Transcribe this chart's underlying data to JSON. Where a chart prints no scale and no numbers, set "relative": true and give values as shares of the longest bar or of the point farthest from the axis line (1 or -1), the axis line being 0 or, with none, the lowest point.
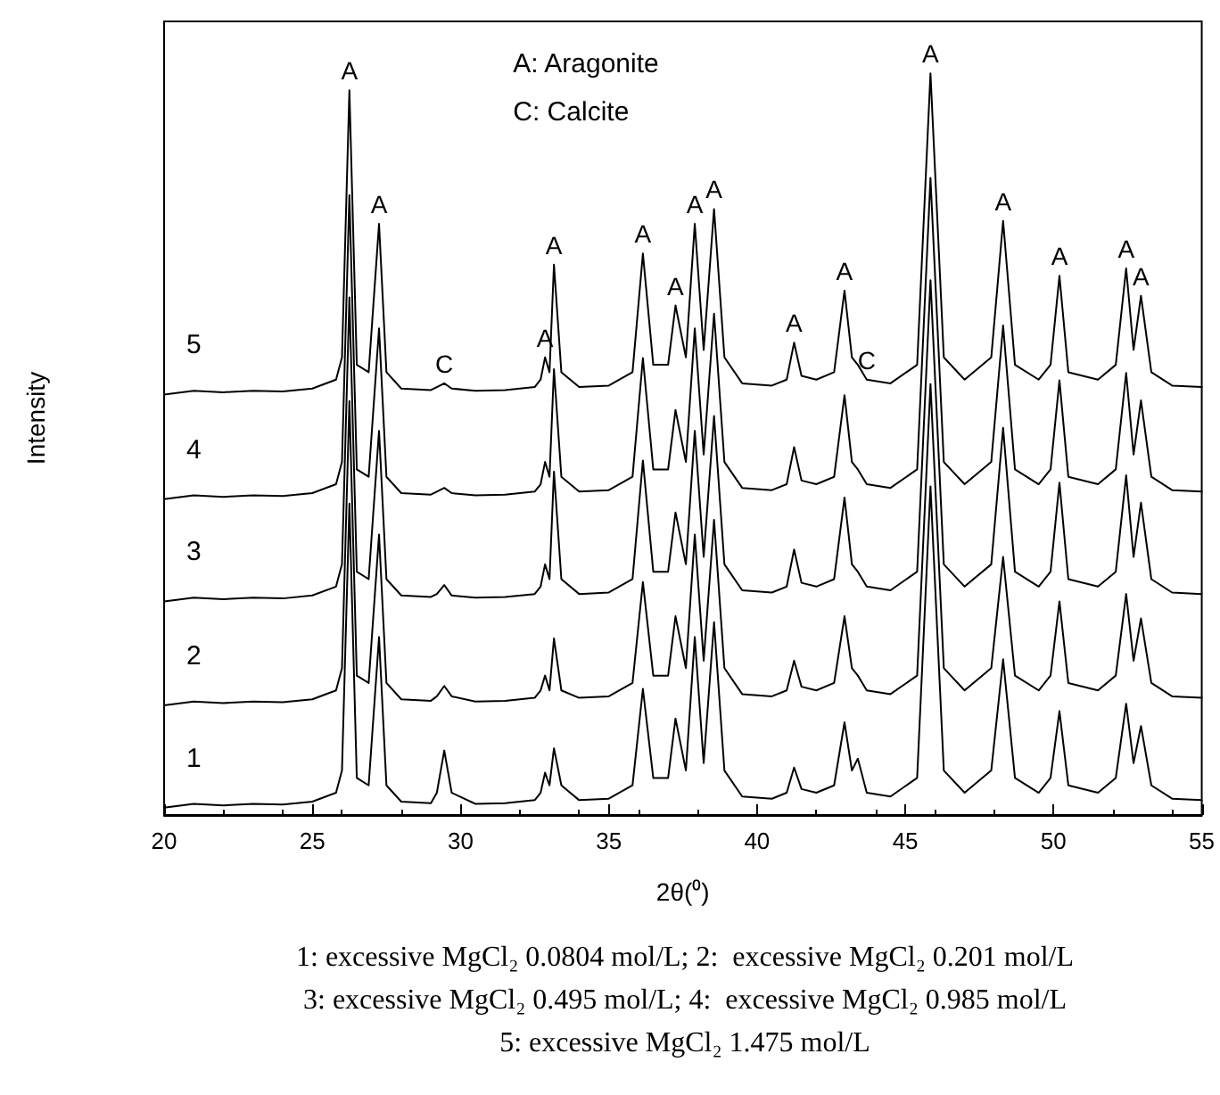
{
  "chart_data": {
    "type": "line",
    "relative": true,
    "xlabel": "2θ(⁰)",
    "ylabel": "Intensity",
    "xlim": [
      20,
      55
    ],
    "xticks": [
      20,
      25,
      30,
      35,
      40,
      45,
      50,
      55
    ],
    "grid": false,
    "legend": false,
    "marker": "none",
    "line_style": "solid",
    "x": [
      20,
      21,
      22,
      23,
      24,
      25,
      25.8,
      26.0,
      26.25,
      26.5,
      26.9,
      27.25,
      27.5,
      28,
      29,
      29.2,
      29.45,
      29.7,
      30.5,
      31.5,
      32.5,
      32.7,
      32.85,
      33.0,
      33.15,
      33.4,
      34,
      35,
      35.8,
      36.15,
      36.5,
      37.0,
      37.25,
      37.6,
      37.9,
      38.2,
      38.55,
      38.9,
      39.5,
      40.5,
      41.0,
      41.25,
      41.5,
      42.0,
      42.6,
      42.95,
      43.2,
      43.4,
      43.7,
      44.5,
      45.4,
      45.85,
      46.3,
      47.0,
      47.9,
      48.3,
      48.7,
      49.5,
      49.9,
      50.2,
      50.5,
      51.5,
      52.1,
      52.45,
      52.7,
      52.95,
      53.3,
      54,
      55
    ],
    "series": [
      {
        "name": "5",
        "color": "#000000",
        "values": [
          0.567,
          0.572,
          0.57,
          0.572,
          0.571,
          0.575,
          0.587,
          0.617,
          0.977,
          0.607,
          0.597,
          0.797,
          0.597,
          0.575,
          0.573,
          0.577,
          0.582,
          0.575,
          0.572,
          0.573,
          0.577,
          0.587,
          0.617,
          0.597,
          0.742,
          0.597,
          0.577,
          0.579,
          0.597,
          0.757,
          0.607,
          0.607,
          0.687,
          0.617,
          0.797,
          0.627,
          0.817,
          0.617,
          0.582,
          0.579,
          0.587,
          0.637,
          0.592,
          0.587,
          0.597,
          0.707,
          0.617,
          0.607,
          0.587,
          0.582,
          0.607,
          1.0,
          0.617,
          0.587,
          0.617,
          0.801,
          0.607,
          0.587,
          0.607,
          0.727,
          0.597,
          0.587,
          0.607,
          0.737,
          0.627,
          0.7,
          0.597,
          0.579,
          0.577
        ]
      },
      {
        "name": "4",
        "color": "#000000",
        "values": [
          0.426,
          0.431,
          0.429,
          0.431,
          0.43,
          0.434,
          0.446,
          0.476,
          0.836,
          0.466,
          0.456,
          0.656,
          0.456,
          0.434,
          0.432,
          0.436,
          0.441,
          0.434,
          0.431,
          0.432,
          0.436,
          0.446,
          0.476,
          0.456,
          0.601,
          0.456,
          0.436,
          0.438,
          0.456,
          0.616,
          0.466,
          0.466,
          0.546,
          0.476,
          0.656,
          0.486,
          0.676,
          0.476,
          0.441,
          0.438,
          0.446,
          0.496,
          0.451,
          0.446,
          0.456,
          0.566,
          0.476,
          0.466,
          0.446,
          0.441,
          0.466,
          0.859,
          0.476,
          0.446,
          0.476,
          0.66,
          0.466,
          0.446,
          0.466,
          0.586,
          0.456,
          0.446,
          0.466,
          0.596,
          0.486,
          0.559,
          0.456,
          0.438,
          0.436
        ]
      },
      {
        "name": "3",
        "color": "#000000",
        "values": [
          0.288,
          0.293,
          0.291,
          0.293,
          0.292,
          0.296,
          0.308,
          0.338,
          0.698,
          0.328,
          0.318,
          0.518,
          0.318,
          0.296,
          0.294,
          0.298,
          0.31,
          0.296,
          0.293,
          0.294,
          0.298,
          0.308,
          0.338,
          0.318,
          0.463,
          0.318,
          0.298,
          0.3,
          0.318,
          0.478,
          0.328,
          0.328,
          0.408,
          0.338,
          0.518,
          0.348,
          0.538,
          0.338,
          0.303,
          0.3,
          0.308,
          0.358,
          0.313,
          0.308,
          0.318,
          0.428,
          0.338,
          0.328,
          0.308,
          0.303,
          0.328,
          0.721,
          0.338,
          0.308,
          0.338,
          0.522,
          0.328,
          0.308,
          0.328,
          0.448,
          0.318,
          0.308,
          0.328,
          0.458,
          0.348,
          0.421,
          0.318,
          0.3,
          0.298
        ]
      },
      {
        "name": "2",
        "color": "#000000",
        "values": [
          0.148,
          0.153,
          0.151,
          0.153,
          0.152,
          0.156,
          0.168,
          0.198,
          0.558,
          0.188,
          0.178,
          0.378,
          0.178,
          0.156,
          0.154,
          0.16,
          0.174,
          0.16,
          0.153,
          0.154,
          0.158,
          0.168,
          0.188,
          0.168,
          0.238,
          0.168,
          0.158,
          0.16,
          0.178,
          0.314,
          0.188,
          0.188,
          0.268,
          0.198,
          0.378,
          0.208,
          0.398,
          0.198,
          0.163,
          0.16,
          0.168,
          0.208,
          0.173,
          0.168,
          0.178,
          0.268,
          0.198,
          0.188,
          0.168,
          0.163,
          0.188,
          0.581,
          0.198,
          0.168,
          0.198,
          0.348,
          0.188,
          0.168,
          0.188,
          0.288,
          0.178,
          0.168,
          0.188,
          0.298,
          0.208,
          0.265,
          0.178,
          0.16,
          0.158
        ]
      },
      {
        "name": "1",
        "color": "#000000",
        "values": [
          0.01,
          0.015,
          0.013,
          0.015,
          0.014,
          0.018,
          0.03,
          0.06,
          0.42,
          0.05,
          0.04,
          0.24,
          0.04,
          0.018,
          0.016,
          0.03,
          0.087,
          0.03,
          0.015,
          0.016,
          0.02,
          0.03,
          0.057,
          0.04,
          0.09,
          0.04,
          0.02,
          0.022,
          0.04,
          0.17,
          0.05,
          0.05,
          0.13,
          0.06,
          0.24,
          0.07,
          0.26,
          0.06,
          0.025,
          0.022,
          0.03,
          0.064,
          0.035,
          0.03,
          0.04,
          0.125,
          0.06,
          0.076,
          0.03,
          0.025,
          0.05,
          0.443,
          0.06,
          0.03,
          0.06,
          0.21,
          0.05,
          0.03,
          0.05,
          0.14,
          0.04,
          0.03,
          0.05,
          0.15,
          0.07,
          0.12,
          0.04,
          0.022,
          0.02
        ]
      }
    ],
    "annotations": [
      "A: Aragonite",
      "C: Calcite",
      {
        "text": "A",
        "x": 26.25,
        "y": 0.977
      },
      {
        "text": "A",
        "x": 27.25,
        "y": 0.797
      },
      {
        "text": "C",
        "x": 29.45,
        "y": 0.582
      },
      {
        "text": "A",
        "x": 32.85,
        "y": 0.617
      },
      {
        "text": "A",
        "x": 33.15,
        "y": 0.742
      },
      {
        "text": "A",
        "x": 36.15,
        "y": 0.757
      },
      {
        "text": "A",
        "x": 37.25,
        "y": 0.687
      },
      {
        "text": "A",
        "x": 37.9,
        "y": 0.797
      },
      {
        "text": "A",
        "x": 38.55,
        "y": 0.817
      },
      {
        "text": "A",
        "x": 41.25,
        "y": 0.637
      },
      {
        "text": "A",
        "x": 42.95,
        "y": 0.707
      },
      {
        "text": "C",
        "x": 43.7,
        "y": 0.587
      },
      {
        "text": "A",
        "x": 45.85,
        "y": 1.0
      },
      {
        "text": "A",
        "x": 48.3,
        "y": 0.801
      },
      {
        "text": "A",
        "x": 50.2,
        "y": 0.727
      },
      {
        "text": "A",
        "x": 52.45,
        "y": 0.737
      },
      {
        "text": "A",
        "x": 52.95,
        "y": 0.7
      },
      "1: excessive MgCl₂ 0.0804 mol/L; 2:  excessive MgCl₂ 0.201 mol/L",
      "3: excessive MgCl₂ 0.495 mol/L; 4:  excessive MgCl₂ 0.985 mol/L",
      "5: excessive MgCl₂ 1.475 mol/L"
    ]
  }
}
